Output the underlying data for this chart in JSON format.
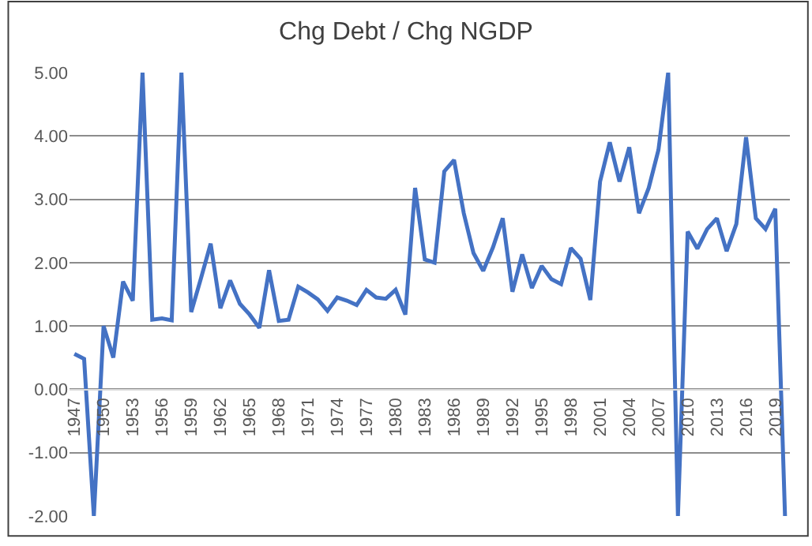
{
  "chart_data": {
    "type": "line",
    "title": "Chg Debt / Chg NGDP",
    "x": [
      1947,
      1948,
      1949,
      1950,
      1951,
      1952,
      1953,
      1954,
      1955,
      1956,
      1957,
      1958,
      1959,
      1960,
      1961,
      1962,
      1963,
      1964,
      1965,
      1966,
      1967,
      1968,
      1969,
      1970,
      1971,
      1972,
      1973,
      1974,
      1975,
      1976,
      1977,
      1978,
      1979,
      1980,
      1981,
      1982,
      1983,
      1984,
      1985,
      1986,
      1987,
      1988,
      1989,
      1990,
      1991,
      1992,
      1993,
      1994,
      1995,
      1996,
      1997,
      1998,
      1999,
      2000,
      2001,
      2002,
      2003,
      2004,
      2005,
      2006,
      2007,
      2008,
      2009,
      2010,
      2011,
      2012,
      2013,
      2014,
      2015,
      2016,
      2017,
      2018,
      2019,
      2020
    ],
    "series": [
      {
        "color": "#4472c4",
        "values": [
          0.56,
          0.48,
          -2.0,
          1.0,
          0.5,
          1.7,
          1.4,
          5.0,
          1.1,
          1.12,
          1.09,
          5.0,
          1.22,
          1.75,
          2.3,
          1.28,
          1.72,
          1.35,
          1.18,
          0.97,
          1.88,
          1.08,
          1.1,
          1.62,
          1.53,
          1.42,
          1.24,
          1.45,
          1.4,
          1.33,
          1.57,
          1.45,
          1.43,
          1.57,
          1.18,
          3.18,
          2.05,
          2.0,
          3.44,
          3.62,
          2.78,
          2.15,
          1.87,
          2.24,
          2.7,
          1.54,
          2.13,
          1.6,
          1.95,
          1.74,
          1.66,
          2.23,
          2.06,
          1.41,
          3.28,
          3.9,
          3.28,
          3.82,
          2.78,
          3.18,
          3.78,
          5.0,
          -2.0,
          2.49,
          2.22,
          2.53,
          2.7,
          2.18,
          2.61,
          3.98,
          2.7,
          2.53,
          2.85,
          -2.0
        ]
      }
    ],
    "xlim": [
      1946.5,
      2020.5
    ],
    "xticks": [
      1947,
      1950,
      1953,
      1956,
      1959,
      1962,
      1965,
      1968,
      1971,
      1974,
      1977,
      1980,
      1983,
      1986,
      1989,
      1992,
      1995,
      1998,
      2001,
      2004,
      2007,
      2010,
      2013,
      2016,
      2019
    ],
    "ylim": [
      -2,
      5
    ],
    "yticks": [
      {
        "value": -2,
        "label": "-2.00"
      },
      {
        "value": -1,
        "label": "-1.00"
      },
      {
        "value": 0,
        "label": "0.00"
      },
      {
        "value": 1,
        "label": "1.00"
      },
      {
        "value": 2,
        "label": "2.00"
      },
      {
        "value": 3,
        "label": "3.00"
      },
      {
        "value": 4,
        "label": "4.00"
      },
      {
        "value": 5,
        "label": "5.00"
      }
    ],
    "grid": "y",
    "legend": false,
    "marker": "none",
    "line_style": "solid"
  }
}
